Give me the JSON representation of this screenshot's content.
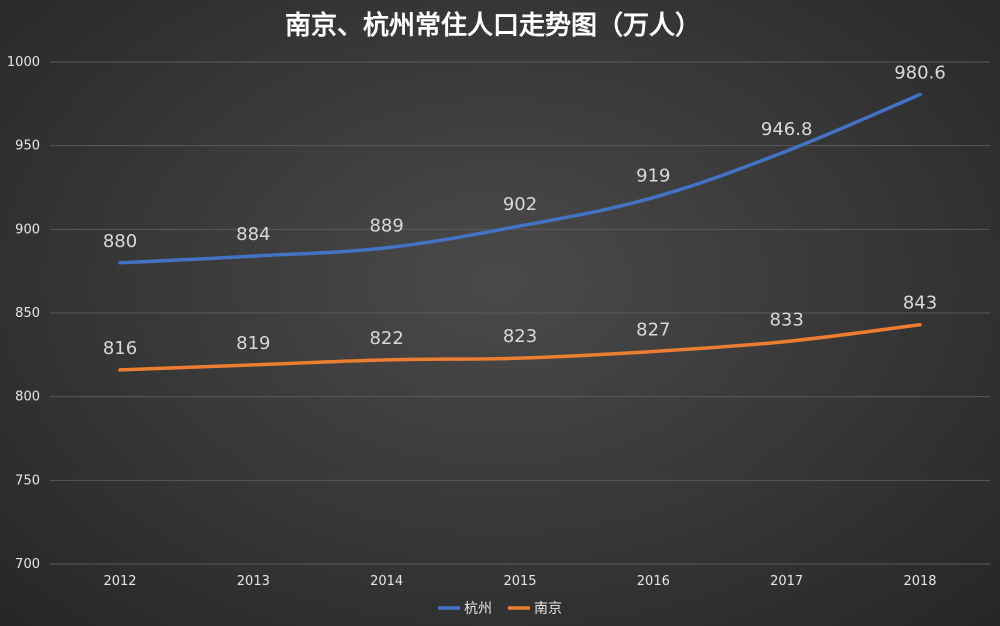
{
  "chart_data": {
    "type": "line",
    "title": "南京、杭州常住人口走势图（万人）",
    "categories": [
      "2012",
      "2013",
      "2014",
      "2015",
      "2016",
      "2017",
      "2018"
    ],
    "series": [
      {
        "name": "杭州",
        "color": "#4472c4",
        "values": [
          880,
          884,
          889,
          902,
          919,
          946.8,
          980.6
        ],
        "labels": [
          "880",
          "884",
          "889",
          "902",
          "919",
          "946.8",
          "980.6"
        ]
      },
      {
        "name": "南京",
        "color": "#ed7d31",
        "values": [
          816,
          819,
          822,
          823,
          827,
          833,
          843
        ],
        "labels": [
          "816",
          "819",
          "822",
          "823",
          "827",
          "833",
          "843"
        ]
      }
    ],
    "ylim": [
      700,
      1000
    ],
    "yticks": [
      "700",
      "750",
      "800",
      "850",
      "900",
      "950",
      "1000"
    ],
    "grid": true,
    "legend": "bottom"
  }
}
